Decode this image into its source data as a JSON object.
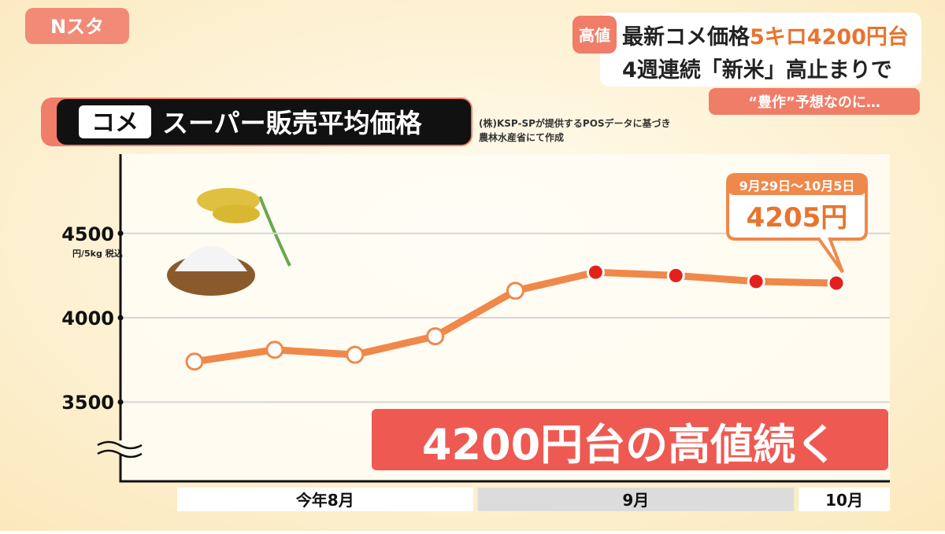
{
  "logo": "Nスタ",
  "headline": {
    "tag": "高値",
    "line1": [
      "最新コメ価格",
      "5キロ4200円台"
    ],
    "line2": "4週連続「新米」高止まりで",
    "sub": "“豊作”予想なのに…"
  },
  "chart_data": {
    "type": "line",
    "title_tag": "コメ",
    "title": "スーパー販売平均価格",
    "source": [
      "(株)KSP-SPが提供するPOSデータに基づき",
      "農林水産省にて作成"
    ],
    "y_unit": "円/5kg 税込",
    "categories": [
      "今年8月",
      null,
      null,
      null,
      "9月",
      null,
      null,
      null,
      "10月"
    ],
    "series": [
      {
        "name": "平均価格",
        "color": "#f0884a",
        "values": [
          3740,
          3810,
          3780,
          3890,
          4160,
          4270,
          4250,
          4215,
          4205
        ],
        "value_labels": [
          null,
          null,
          null,
          null,
          null,
          null,
          null,
          null,
          "4205円"
        ],
        "point_colors": [
          "#ffffff",
          "#ffffff",
          "#ffffff",
          "#ffffff",
          "#ffffff",
          "#e3211c",
          "#e3211c",
          "#e3211c",
          "#e3211c"
        ]
      }
    ],
    "callout_date": "9月29日〜10月5日",
    "caption": "4200円台の高値続く",
    "ylim": [
      3030,
      4970
    ],
    "yticks": [
      3500,
      4000,
      4500
    ],
    "grid": true
  }
}
